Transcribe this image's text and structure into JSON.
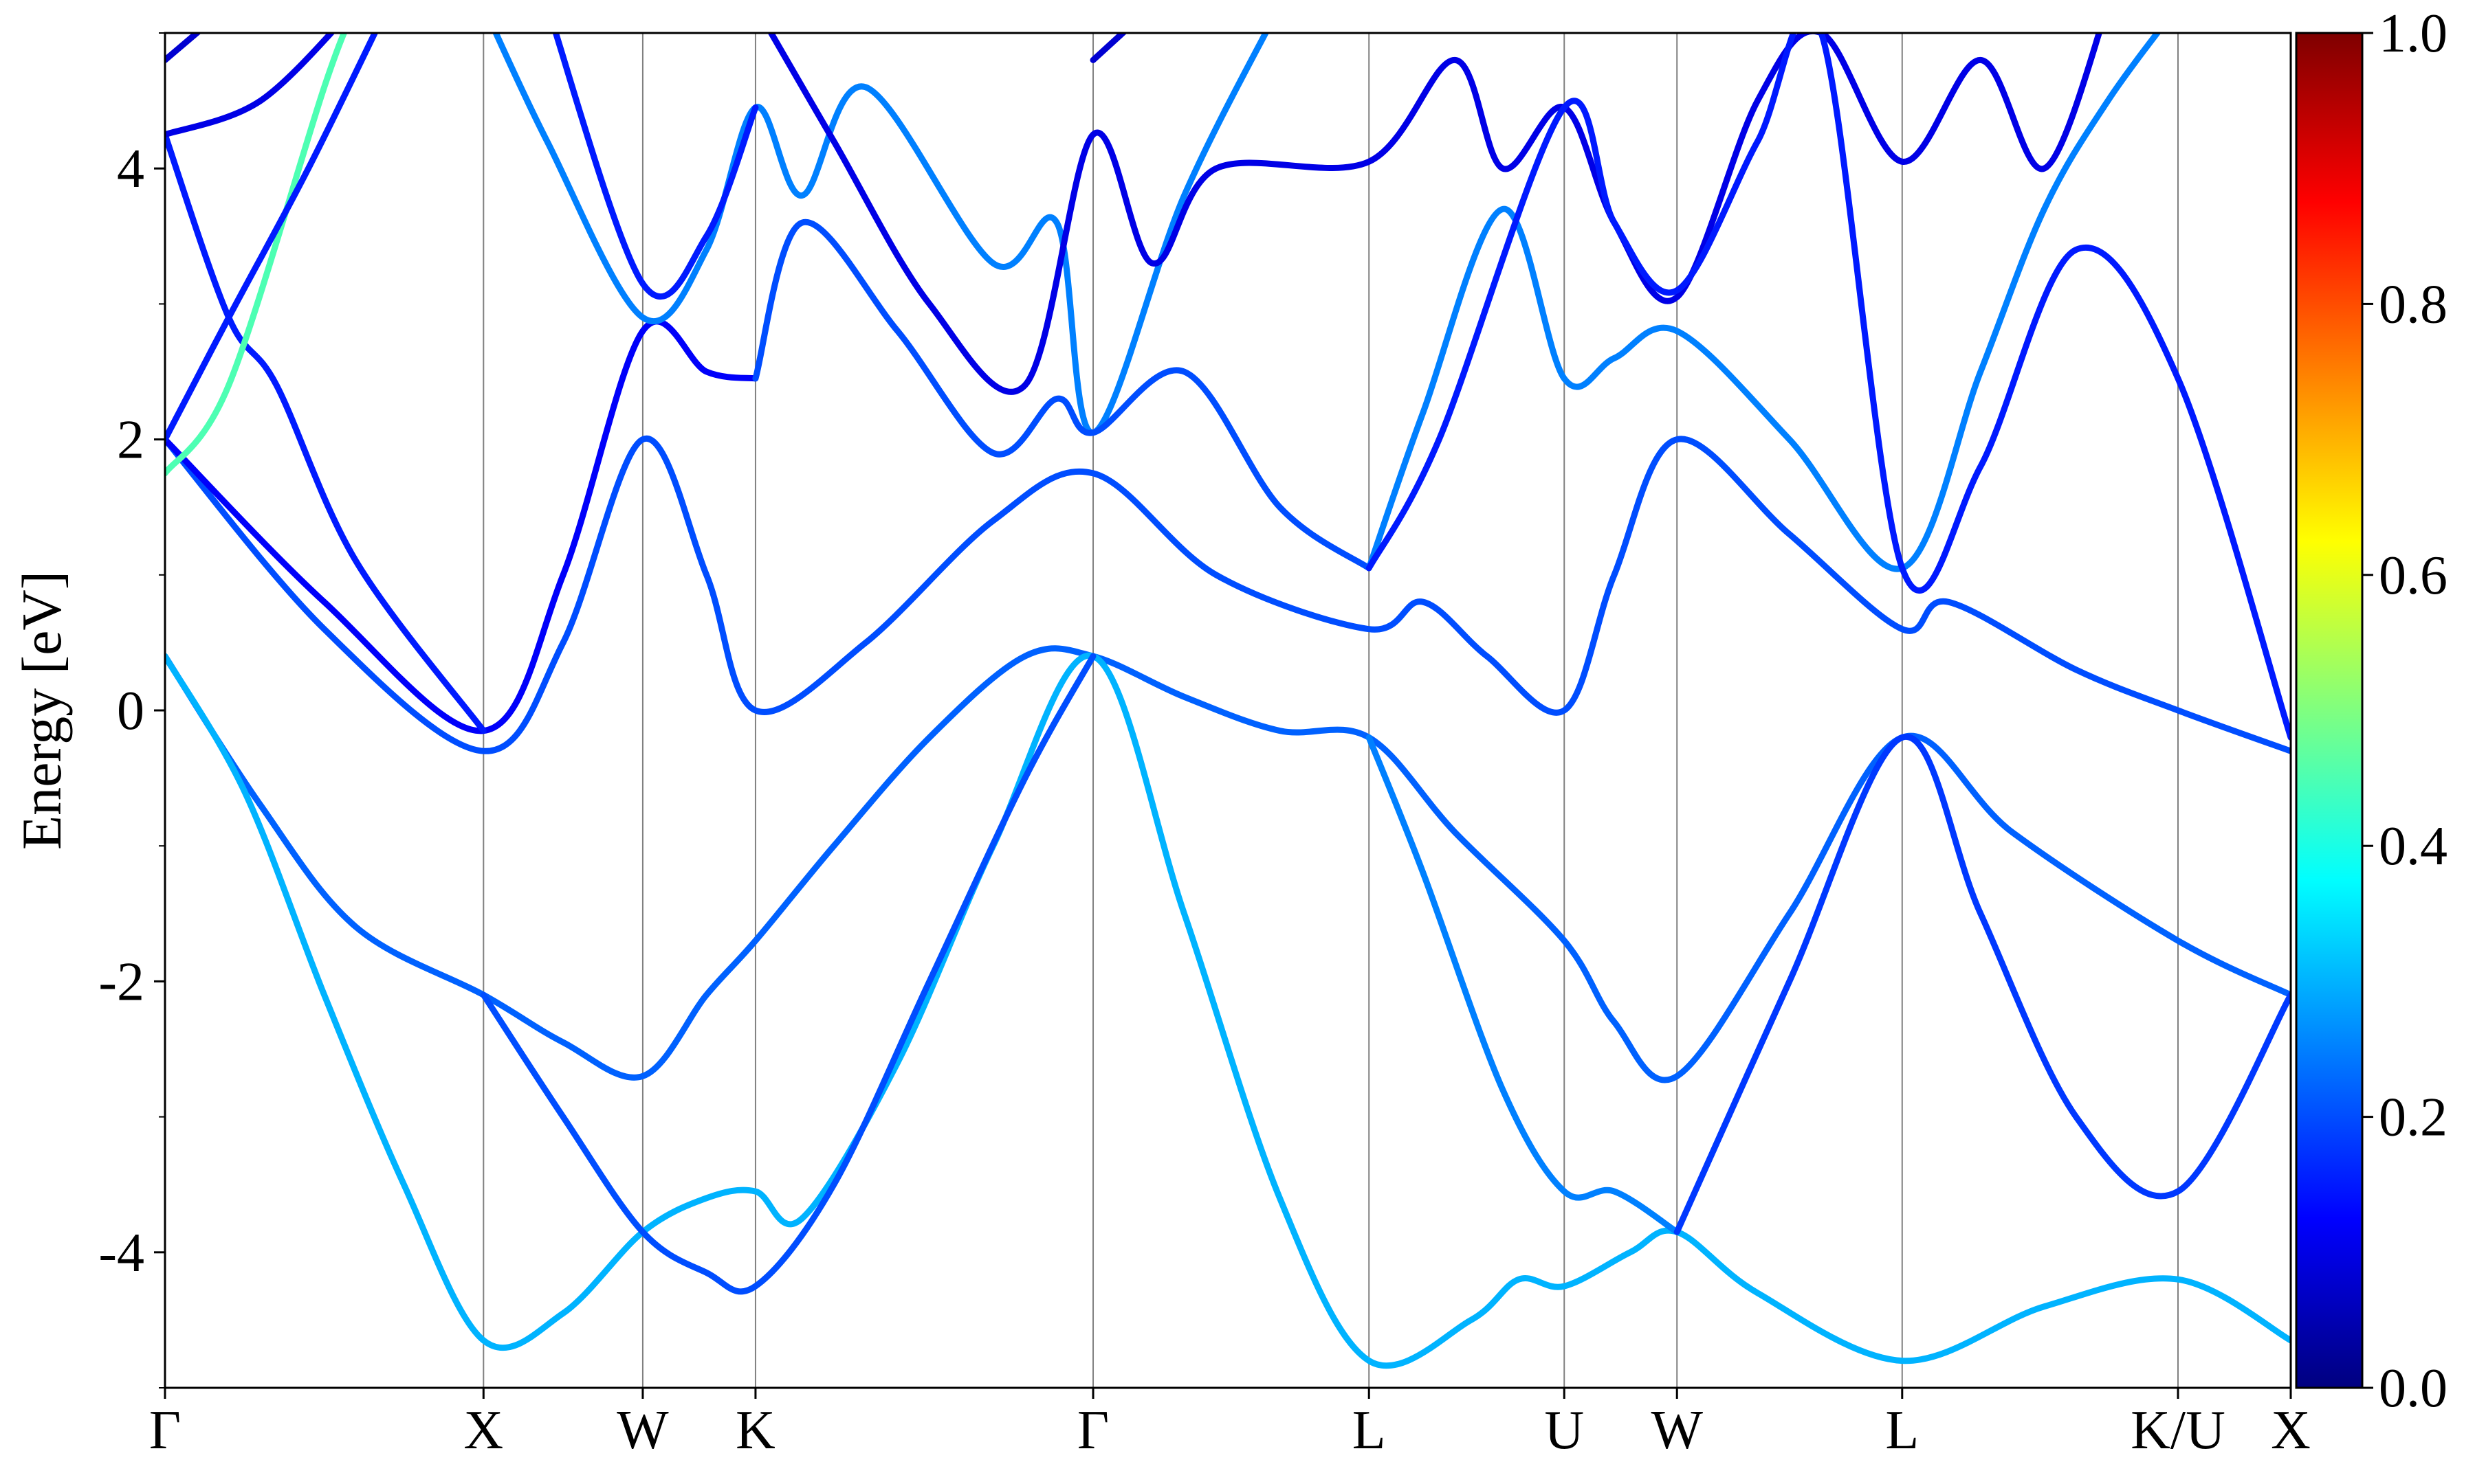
{
  "chart_data": {
    "type": "line",
    "ylabel": "Energy [eV]",
    "xlabel": "",
    "ylim": [
      -5,
      5
    ],
    "y_ticks": [
      {
        "value": 4,
        "label": "4"
      },
      {
        "value": 2,
        "label": "2"
      },
      {
        "value": 0,
        "label": "0"
      },
      {
        "value": -2,
        "label": "-2"
      },
      {
        "value": -4,
        "label": "-4"
      }
    ],
    "y_minor_ticks": [
      5,
      3,
      1,
      -1,
      -3,
      -5
    ],
    "k_points": [
      {
        "label": "Γ",
        "x": 0.0
      },
      {
        "label": "X",
        "x": 1.0
      },
      {
        "label": "W",
        "x": 1.5
      },
      {
        "label": "K",
        "x": 1.854
      },
      {
        "label": "Γ",
        "x": 2.914
      },
      {
        "label": "L",
        "x": 3.78
      },
      {
        "label": "U",
        "x": 4.393
      },
      {
        "label": "W",
        "x": 4.747
      },
      {
        "label": "L",
        "x": 5.454
      },
      {
        "label": "K/U",
        "x": 6.32
      },
      {
        "label": "X",
        "x": 6.674
      }
    ],
    "xlim": [
      0,
      6.674
    ],
    "colorbar": {
      "range": [
        0.0,
        1.0
      ],
      "ticks": [
        {
          "value": 0.0,
          "label": "0.0"
        },
        {
          "value": 0.2,
          "label": "0.2"
        },
        {
          "value": 0.4,
          "label": "0.4"
        },
        {
          "value": 0.6,
          "label": "0.6"
        },
        {
          "value": 0.8,
          "label": "0.8"
        },
        {
          "value": 1.0,
          "label": "1.0"
        }
      ],
      "colormap": "jet"
    },
    "series": [
      {
        "w": 0.22,
        "points": [
          [
            0,
            0.4
          ],
          [
            0.3,
            -0.7
          ],
          [
            0.6,
            -1.6
          ],
          [
            1.0,
            -2.1
          ],
          [
            1.25,
            -2.45
          ],
          [
            1.5,
            -2.7
          ],
          [
            1.7,
            -2.1
          ],
          [
            1.854,
            -1.7
          ],
          [
            2.1,
            -1.0
          ],
          [
            2.4,
            -0.2
          ],
          [
            2.7,
            0.4
          ],
          [
            2.914,
            0.4
          ],
          [
            3.2,
            0.1
          ],
          [
            3.5,
            -0.15
          ],
          [
            3.78,
            -0.2
          ],
          [
            4.05,
            -0.9
          ],
          [
            4.393,
            -1.7
          ],
          [
            4.55,
            -2.3
          ],
          [
            4.747,
            -2.7
          ],
          [
            5.1,
            -1.5
          ],
          [
            5.454,
            -0.2
          ],
          [
            5.8,
            -0.9
          ],
          [
            6.32,
            -1.7
          ],
          [
            6.674,
            -2.1
          ]
        ]
      },
      {
        "w": 0.3,
        "points": [
          [
            0,
            0.4
          ],
          [
            0.25,
            -0.6
          ],
          [
            0.5,
            -2.1
          ],
          [
            0.75,
            -3.5
          ],
          [
            1.0,
            -4.65
          ],
          [
            1.25,
            -4.45
          ],
          [
            1.5,
            -3.85
          ],
          [
            1.7,
            -3.6
          ],
          [
            1.854,
            -3.55
          ],
          [
            2.0,
            -3.75
          ],
          [
            2.3,
            -2.6
          ],
          [
            2.6,
            -1.0
          ],
          [
            2.914,
            0.4
          ],
          [
            3.2,
            -1.5
          ],
          [
            3.5,
            -3.6
          ],
          [
            3.78,
            -4.8
          ],
          [
            4.1,
            -4.5
          ],
          [
            4.25,
            -4.2
          ],
          [
            4.393,
            -4.25
          ],
          [
            4.6,
            -4.0
          ],
          [
            4.747,
            -3.85
          ],
          [
            5.0,
            -4.3
          ],
          [
            5.454,
            -4.8
          ],
          [
            5.9,
            -4.4
          ],
          [
            6.32,
            -4.2
          ],
          [
            6.674,
            -4.65
          ]
        ]
      },
      {
        "w": 0.2,
        "points": [
          [
            1.0,
            -2.1
          ],
          [
            1.25,
            -3.0
          ],
          [
            1.5,
            -3.85
          ],
          [
            1.7,
            -4.15
          ],
          [
            1.854,
            -4.25
          ],
          [
            2.1,
            -3.5
          ],
          [
            2.4,
            -2.0
          ],
          [
            2.7,
            -0.5
          ],
          [
            2.914,
            0.4
          ]
        ]
      },
      {
        "w": 0.25,
        "points": [
          [
            3.78,
            -0.2
          ],
          [
            3.95,
            -1.2
          ],
          [
            4.2,
            -2.8
          ],
          [
            4.393,
            -3.55
          ],
          [
            4.55,
            -3.55
          ],
          [
            4.747,
            -3.85
          ]
        ]
      },
      {
        "w": 0.18,
        "points": [
          [
            4.747,
            -3.85
          ],
          [
            5.1,
            -2.0
          ],
          [
            5.454,
            -0.2
          ],
          [
            5.7,
            -1.5
          ],
          [
            6.0,
            -3.0
          ],
          [
            6.32,
            -3.55
          ],
          [
            6.674,
            -2.1
          ]
        ]
      },
      {
        "w": 0.2,
        "points": [
          [
            0,
            2.0
          ],
          [
            0.5,
            0.6
          ],
          [
            1.0,
            -0.3
          ],
          [
            1.25,
            0.5
          ],
          [
            1.5,
            2.0
          ],
          [
            1.7,
            1.0
          ],
          [
            1.854,
            0.0
          ],
          [
            2.2,
            0.5
          ],
          [
            2.6,
            1.4
          ],
          [
            2.914,
            1.75
          ],
          [
            3.3,
            1.0
          ],
          [
            3.78,
            0.6
          ],
          [
            3.95,
            0.8
          ],
          [
            4.15,
            0.4
          ],
          [
            4.393,
            0.0
          ],
          [
            4.55,
            1.0
          ],
          [
            4.747,
            2.0
          ],
          [
            5.1,
            1.3
          ],
          [
            5.454,
            0.6
          ],
          [
            5.6,
            0.8
          ],
          [
            6.0,
            0.3
          ],
          [
            6.32,
            0.0
          ],
          [
            6.674,
            -0.3
          ]
        ]
      },
      {
        "w": 0.12,
        "points": [
          [
            0,
            2.0
          ],
          [
            0.5,
            0.8
          ],
          [
            1.0,
            -0.15
          ],
          [
            1.25,
            1.0
          ],
          [
            1.5,
            2.8
          ],
          [
            1.7,
            2.5
          ],
          [
            1.854,
            2.45
          ]
        ]
      },
      {
        "w": 0.15,
        "points": [
          [
            0,
            4.25
          ],
          [
            0.2,
            2.9
          ],
          [
            0.35,
            2.4
          ],
          [
            0.6,
            1.1
          ],
          [
            1.0,
            -0.15
          ]
        ]
      },
      {
        "w": 0.1,
        "points": [
          [
            0,
            4.25
          ],
          [
            0.3,
            4.5
          ],
          [
            0.6,
            5.2
          ]
        ]
      },
      {
        "w": 0.08,
        "points": [
          [
            0,
            4.8
          ],
          [
            0.2,
            5.2
          ]
        ]
      },
      {
        "w": 0.45,
        "points": [
          [
            0,
            1.75
          ],
          [
            0.2,
            2.4
          ],
          [
            0.5,
            4.6
          ],
          [
            0.6,
            5.2
          ]
        ]
      },
      {
        "w": 0.15,
        "points": [
          [
            0,
            2.0
          ],
          [
            0.2,
            2.9
          ],
          [
            0.45,
            4.0
          ],
          [
            0.7,
            5.2
          ]
        ]
      },
      {
        "w": 0.25,
        "points": [
          [
            1.0,
            5.2
          ],
          [
            1.2,
            4.2
          ],
          [
            1.5,
            2.9
          ],
          [
            1.7,
            3.4
          ],
          [
            1.854,
            4.45
          ],
          [
            2.0,
            3.8
          ],
          [
            2.2,
            4.6
          ],
          [
            2.6,
            3.3
          ],
          [
            2.8,
            3.6
          ],
          [
            2.914,
            2.05
          ],
          [
            3.2,
            3.8
          ],
          [
            3.5,
            5.2
          ]
        ]
      },
      {
        "w": 0.15,
        "points": [
          [
            1.2,
            5.2
          ],
          [
            1.5,
            3.15
          ],
          [
            1.7,
            3.5
          ],
          [
            1.854,
            4.45
          ]
        ]
      },
      {
        "w": 0.2,
        "points": [
          [
            1.854,
            2.45
          ],
          [
            2.0,
            3.6
          ],
          [
            2.3,
            2.8
          ],
          [
            2.6,
            1.9
          ],
          [
            2.8,
            2.3
          ],
          [
            2.914,
            2.05
          ],
          [
            3.2,
            2.5
          ],
          [
            3.5,
            1.5
          ],
          [
            3.78,
            1.05
          ]
        ]
      },
      {
        "w": 0.1,
        "points": [
          [
            1.854,
            5.2
          ],
          [
            2.1,
            4.2
          ],
          [
            2.4,
            3.0
          ],
          [
            2.7,
            2.4
          ],
          [
            2.914,
            4.25
          ],
          [
            3.1,
            3.3
          ],
          [
            3.3,
            4.0
          ],
          [
            3.78,
            4.05
          ],
          [
            4.05,
            4.8
          ],
          [
            4.2,
            4.0
          ],
          [
            4.393,
            4.45
          ],
          [
            4.55,
            3.6
          ],
          [
            4.747,
            3.05
          ],
          [
            5.0,
            4.5
          ],
          [
            5.2,
            5.0
          ],
          [
            5.454,
            4.05
          ],
          [
            5.7,
            4.8
          ],
          [
            5.9,
            4.0
          ],
          [
            6.1,
            5.2
          ]
        ]
      },
      {
        "w": 0.25,
        "points": [
          [
            3.78,
            1.05
          ],
          [
            3.95,
            2.2
          ],
          [
            4.2,
            3.7
          ],
          [
            4.393,
            2.45
          ],
          [
            4.55,
            2.6
          ],
          [
            4.747,
            2.8
          ],
          [
            5.1,
            2.0
          ],
          [
            5.454,
            1.05
          ],
          [
            5.7,
            2.5
          ],
          [
            5.9,
            3.7
          ],
          [
            6.1,
            4.5
          ],
          [
            6.32,
            5.2
          ]
        ]
      },
      {
        "w": 0.15,
        "points": [
          [
            3.78,
            1.05
          ],
          [
            4.0,
            2.0
          ],
          [
            4.393,
            4.45
          ],
          [
            4.55,
            3.6
          ],
          [
            4.747,
            3.1
          ],
          [
            5.0,
            4.2
          ],
          [
            5.2,
            5.0
          ],
          [
            5.454,
            1.05
          ],
          [
            5.7,
            1.8
          ],
          [
            6.0,
            3.4
          ],
          [
            6.32,
            2.45
          ],
          [
            6.674,
            -0.2
          ]
        ]
      },
      {
        "w": 0.08,
        "points": [
          [
            2.914,
            4.8
          ],
          [
            3.1,
            5.2
          ]
        ]
      }
    ]
  }
}
